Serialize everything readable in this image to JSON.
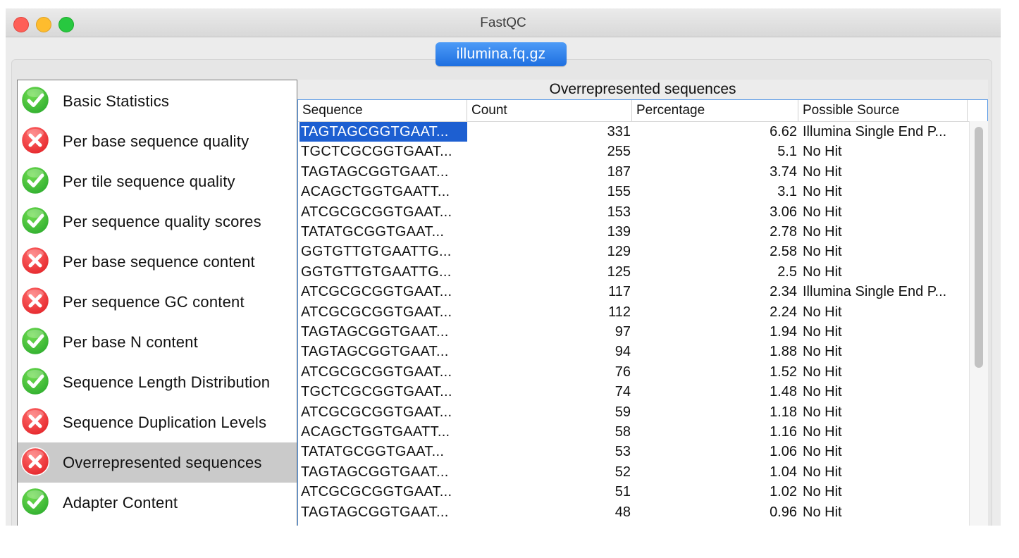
{
  "window": {
    "title": "FastQC",
    "file_tab": "illumina.fq.gz"
  },
  "colors": {
    "pass": "#2fae2f",
    "fail": "#e5262b",
    "selected_row": "#1d5fd1",
    "tab_accent": "#2b7ff0"
  },
  "sidebar": {
    "items": [
      {
        "label": "Basic Statistics",
        "status": "pass",
        "icon": "check-icon"
      },
      {
        "label": "Per base sequence quality",
        "status": "fail",
        "icon": "cross-icon"
      },
      {
        "label": "Per tile sequence quality",
        "status": "pass",
        "icon": "check-icon"
      },
      {
        "label": "Per sequence quality scores",
        "status": "pass",
        "icon": "check-icon"
      },
      {
        "label": "Per base sequence content",
        "status": "fail",
        "icon": "cross-icon"
      },
      {
        "label": "Per sequence GC content",
        "status": "fail",
        "icon": "cross-icon"
      },
      {
        "label": "Per base N content",
        "status": "pass",
        "icon": "check-icon"
      },
      {
        "label": "Sequence Length Distribution",
        "status": "pass",
        "icon": "check-icon"
      },
      {
        "label": "Sequence Duplication Levels",
        "status": "fail",
        "icon": "cross-icon"
      },
      {
        "label": "Overrepresented sequences",
        "status": "fail",
        "icon": "cross-icon",
        "selected": true
      },
      {
        "label": "Adapter Content",
        "status": "pass",
        "icon": "check-icon"
      }
    ]
  },
  "panel": {
    "title": "Overrepresented sequences",
    "columns": [
      "Sequence",
      "Count",
      "Percentage",
      "Possible Source"
    ],
    "rows": [
      {
        "sequence": "TAGTAGCGGTGAAT...",
        "count": "331",
        "percentage": "6.62",
        "source": "Illumina Single End P..."
      },
      {
        "sequence": "TGCTCGCGGTGAAT...",
        "count": "255",
        "percentage": "5.1",
        "source": "No Hit"
      },
      {
        "sequence": "TAGTAGCGGTGAAT...",
        "count": "187",
        "percentage": "3.74",
        "source": "No Hit"
      },
      {
        "sequence": "ACAGCTGGTGAATT...",
        "count": "155",
        "percentage": "3.1",
        "source": "No Hit"
      },
      {
        "sequence": "ATCGCGCGGTGAAT...",
        "count": "153",
        "percentage": "3.06",
        "source": "No Hit"
      },
      {
        "sequence": "TATATGCGGTGAAT...",
        "count": "139",
        "percentage": "2.78",
        "source": "No Hit"
      },
      {
        "sequence": "GGTGTTGTGAATTG...",
        "count": "129",
        "percentage": "2.58",
        "source": "No Hit"
      },
      {
        "sequence": "GGTGTTGTGAATTG...",
        "count": "125",
        "percentage": "2.5",
        "source": "No Hit"
      },
      {
        "sequence": "ATCGCGCGGTGAAT...",
        "count": "117",
        "percentage": "2.34",
        "source": "Illumina Single End P..."
      },
      {
        "sequence": "ATCGCGCGGTGAAT...",
        "count": "112",
        "percentage": "2.24",
        "source": "No Hit"
      },
      {
        "sequence": "TAGTAGCGGTGAAT...",
        "count": "97",
        "percentage": "1.94",
        "source": "No Hit"
      },
      {
        "sequence": "TAGTAGCGGTGAAT...",
        "count": "94",
        "percentage": "1.88",
        "source": "No Hit"
      },
      {
        "sequence": "ATCGCGCGGTGAAT...",
        "count": "76",
        "percentage": "1.52",
        "source": "No Hit"
      },
      {
        "sequence": "TGCTCGCGGTGAAT...",
        "count": "74",
        "percentage": "1.48",
        "source": "No Hit"
      },
      {
        "sequence": "ATCGCGCGGTGAAT...",
        "count": "59",
        "percentage": "1.18",
        "source": "No Hit"
      },
      {
        "sequence": "ACAGCTGGTGAATT...",
        "count": "58",
        "percentage": "1.16",
        "source": "No Hit"
      },
      {
        "sequence": "TATATGCGGTGAAT...",
        "count": "53",
        "percentage": "1.06",
        "source": "No Hit"
      },
      {
        "sequence": "TAGTAGCGGTGAAT...",
        "count": "52",
        "percentage": "1.04",
        "source": "No Hit"
      },
      {
        "sequence": "ATCGCGCGGTGAAT...",
        "count": "51",
        "percentage": "1.02",
        "source": "No Hit"
      },
      {
        "sequence": "TAGTAGCGGTGAAT...",
        "count": "48",
        "percentage": "0.96",
        "source": "No Hit"
      }
    ]
  }
}
